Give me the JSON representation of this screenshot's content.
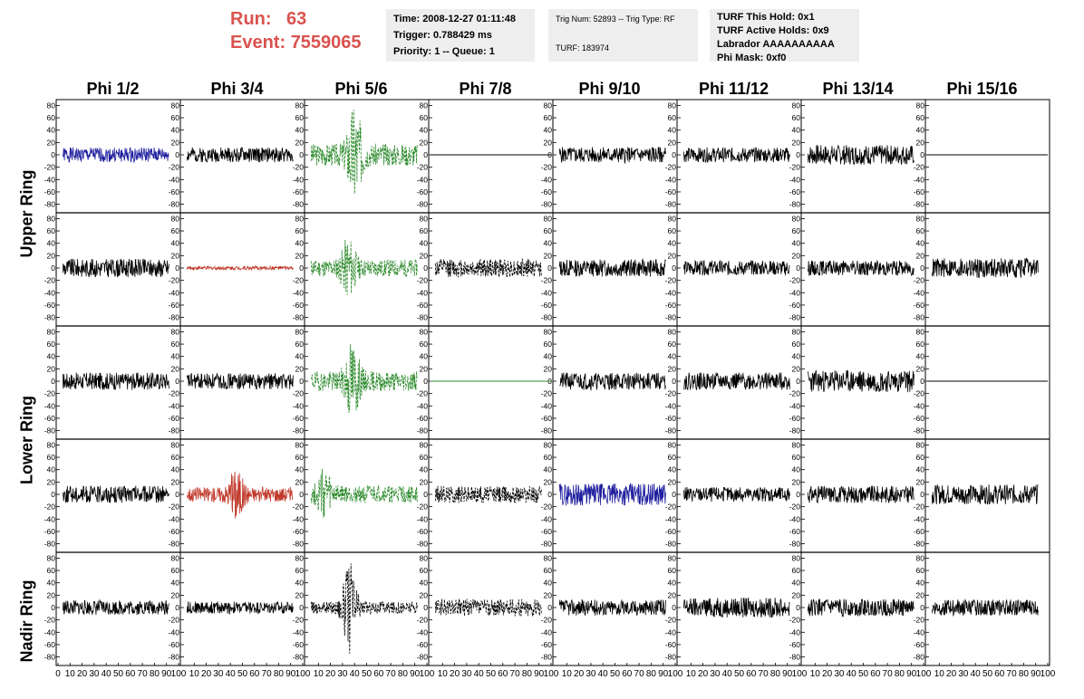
{
  "header": {
    "run_label": "Run:",
    "run_value": "63",
    "event_label": "Event:",
    "event_value": "7559065",
    "time_line": "Time: 2008-12-27 01:11:48",
    "trigger_line": "Trigger: 0.788429 ms",
    "priority_line": "Priority: 1 -- Queue: 1",
    "trig_num_line": "Trig Num: 52893 -- Trig Type: RF",
    "turf_line": "TURF: 183974",
    "turf_hold_line": "TURF This Hold: 0x1",
    "turf_active_line": "TURF Active Holds: 0x9",
    "labrador_line": "Labrador AAAAAAAAAA",
    "phi_mask_line": "Phi Mask: 0xf0"
  },
  "columns": [
    "Phi 1/2",
    "Phi 3/4",
    "Phi 5/6",
    "Phi 7/8",
    "Phi 9/10",
    "Phi 11/12",
    "Phi 13/14",
    "Phi 15/16"
  ],
  "row_labels": [
    "Upper Ring",
    "Lower Ring",
    "Nadir Ring"
  ],
  "colors": {
    "black": "#000000",
    "blue": "#1f1f9f",
    "red": "#c0392b",
    "green": "#2e8b2e",
    "green_flat": "#2e8b2e",
    "header_red": "#d9534f",
    "panel_bg": "#eeeeee"
  },
  "chart_data": {
    "type": "line",
    "title": "",
    "xlabel": "",
    "ylabel": "",
    "xlim": [
      0,
      100
    ],
    "ylim": [
      -85,
      85
    ],
    "y_ticks": [
      -80,
      -60,
      -40,
      -20,
      0,
      20,
      40,
      60,
      80
    ],
    "y_tick_labels": [
      "-80",
      "-60",
      "-40",
      "-20",
      "0",
      "20",
      "40",
      "60",
      "80"
    ],
    "x_ticks": [
      0,
      10,
      20,
      30,
      40,
      50,
      60,
      70,
      80,
      90,
      100
    ],
    "x_tick_labels": [
      "0",
      "10",
      "20",
      "30",
      "40",
      "50",
      "60",
      "70",
      "80",
      "90",
      "100"
    ],
    "grid": false,
    "panels": [
      {
        "row": 0,
        "col": 0,
        "color": "blue",
        "style": "solid",
        "amp": 12,
        "seed": 1
      },
      {
        "row": 0,
        "col": 1,
        "color": "black",
        "style": "solid",
        "amp": 12,
        "seed": 2
      },
      {
        "row": 0,
        "col": 2,
        "color": "green",
        "style": "dashed",
        "amp": 18,
        "seed": 3,
        "burst": 40,
        "burst_amp": 70
      },
      {
        "row": 0,
        "col": 3,
        "color": "black",
        "style": "flat",
        "amp": 0,
        "seed": 4
      },
      {
        "row": 0,
        "col": 4,
        "color": "black",
        "style": "solid",
        "amp": 13,
        "seed": 5
      },
      {
        "row": 0,
        "col": 5,
        "color": "black",
        "style": "solid",
        "amp": 12,
        "seed": 6
      },
      {
        "row": 0,
        "col": 6,
        "color": "black",
        "style": "solid",
        "amp": 16,
        "seed": 7
      },
      {
        "row": 0,
        "col": 7,
        "color": "black",
        "style": "flat",
        "amp": 0,
        "seed": 8
      },
      {
        "row": 1,
        "col": 0,
        "color": "black",
        "style": "solid",
        "amp": 15,
        "seed": 9
      },
      {
        "row": 1,
        "col": 1,
        "color": "red",
        "style": "solid",
        "amp": 3,
        "seed": 10
      },
      {
        "row": 1,
        "col": 2,
        "color": "green",
        "style": "dashed",
        "amp": 14,
        "seed": 11,
        "burst": 35,
        "burst_amp": 40
      },
      {
        "row": 1,
        "col": 3,
        "color": "black",
        "style": "dashed",
        "amp": 15,
        "seed": 12
      },
      {
        "row": 1,
        "col": 4,
        "color": "black",
        "style": "solid",
        "amp": 14,
        "seed": 13
      },
      {
        "row": 1,
        "col": 5,
        "color": "black",
        "style": "solid",
        "amp": 12,
        "seed": 14
      },
      {
        "row": 1,
        "col": 6,
        "color": "black",
        "style": "solid",
        "amp": 12,
        "seed": 15
      },
      {
        "row": 1,
        "col": 7,
        "color": "black",
        "style": "solid",
        "amp": 16,
        "seed": 16
      },
      {
        "row": 2,
        "col": 0,
        "color": "black",
        "style": "solid",
        "amp": 14,
        "seed": 17
      },
      {
        "row": 2,
        "col": 1,
        "color": "black",
        "style": "solid",
        "amp": 13,
        "seed": 18
      },
      {
        "row": 2,
        "col": 2,
        "color": "green",
        "style": "dashed",
        "amp": 16,
        "seed": 19,
        "burst": 38,
        "burst_amp": 55
      },
      {
        "row": 2,
        "col": 3,
        "color": "green_flat",
        "style": "flat",
        "amp": 0,
        "seed": 20
      },
      {
        "row": 2,
        "col": 4,
        "color": "black",
        "style": "solid",
        "amp": 14,
        "seed": 21
      },
      {
        "row": 2,
        "col": 5,
        "color": "black",
        "style": "solid",
        "amp": 14,
        "seed": 22
      },
      {
        "row": 2,
        "col": 6,
        "color": "black",
        "style": "solid",
        "amp": 18,
        "seed": 23
      },
      {
        "row": 2,
        "col": 7,
        "color": "black",
        "style": "flat",
        "amp": 0,
        "seed": 24
      },
      {
        "row": 3,
        "col": 0,
        "color": "black",
        "style": "solid",
        "amp": 14,
        "seed": 25
      },
      {
        "row": 3,
        "col": 1,
        "color": "red",
        "style": "solid",
        "amp": 12,
        "seed": 26,
        "burst": 45,
        "burst_amp": 35
      },
      {
        "row": 3,
        "col": 2,
        "color": "green",
        "style": "dashed",
        "amp": 14,
        "seed": 27,
        "burst": 15,
        "burst_amp": 30
      },
      {
        "row": 3,
        "col": 3,
        "color": "black",
        "style": "dashed",
        "amp": 14,
        "seed": 28
      },
      {
        "row": 3,
        "col": 4,
        "color": "blue",
        "style": "solid",
        "amp": 18,
        "seed": 29
      },
      {
        "row": 3,
        "col": 5,
        "color": "black",
        "style": "solid",
        "amp": 12,
        "seed": 30
      },
      {
        "row": 3,
        "col": 6,
        "color": "black",
        "style": "solid",
        "amp": 14,
        "seed": 31
      },
      {
        "row": 3,
        "col": 7,
        "color": "black",
        "style": "solid",
        "amp": 16,
        "seed": 32
      },
      {
        "row": 4,
        "col": 0,
        "color": "black",
        "style": "solid",
        "amp": 12,
        "seed": 33
      },
      {
        "row": 4,
        "col": 1,
        "color": "black",
        "style": "solid",
        "amp": 10,
        "seed": 34
      },
      {
        "row": 4,
        "col": 2,
        "color": "black",
        "style": "dashed",
        "amp": 10,
        "seed": 35,
        "burst": 36,
        "burst_amp": 65
      },
      {
        "row": 4,
        "col": 3,
        "color": "black",
        "style": "dashed",
        "amp": 14,
        "seed": 36
      },
      {
        "row": 4,
        "col": 4,
        "color": "black",
        "style": "solid",
        "amp": 13,
        "seed": 37
      },
      {
        "row": 4,
        "col": 5,
        "color": "black",
        "style": "solid",
        "amp": 16,
        "seed": 38
      },
      {
        "row": 4,
        "col": 6,
        "color": "black",
        "style": "solid",
        "amp": 14,
        "seed": 39
      },
      {
        "row": 4,
        "col": 7,
        "color": "black",
        "style": "solid",
        "amp": 13,
        "seed": 40
      }
    ]
  }
}
